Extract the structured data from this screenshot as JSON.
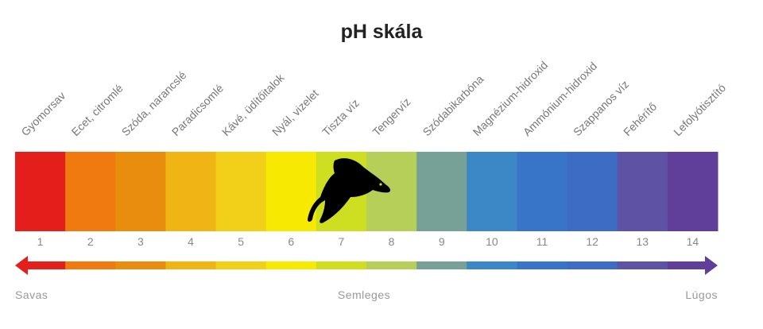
{
  "title": "pH skála",
  "chart_data": {
    "type": "diagram",
    "ph_values": [
      "1",
      "2",
      "3",
      "4",
      "5",
      "6",
      "7",
      "8",
      "9",
      "10",
      "11",
      "12",
      "13",
      "14"
    ],
    "substances": [
      "Gyomorsav",
      "Ecet, citromlé",
      "Szóda, narancslé",
      "Paradicsomlé",
      "Kávé, üdítőitalok",
      "Nyál, vizelet",
      "Tiszta víz",
      "Tengervíz",
      "Szódabikarbóna",
      "Magnézium-hidroxid",
      "Ammónium-hidroxid",
      "Szappanos víz",
      "Fehérítő",
      "Lefolyótisztító"
    ],
    "colors": [
      "#e31e1b",
      "#f07a10",
      "#e98d0e",
      "#f0b414",
      "#f2cf18",
      "#f7e902",
      "#cedf21",
      "#b5cf59",
      "#77a096",
      "#3c88c6",
      "#3875c9",
      "#3c6cc4",
      "#5e52a4",
      "#603f9a"
    ],
    "axis_labels": {
      "left": "Savas",
      "center": "Semleges",
      "right": "Lúgos"
    },
    "icon": "fish-icon"
  }
}
